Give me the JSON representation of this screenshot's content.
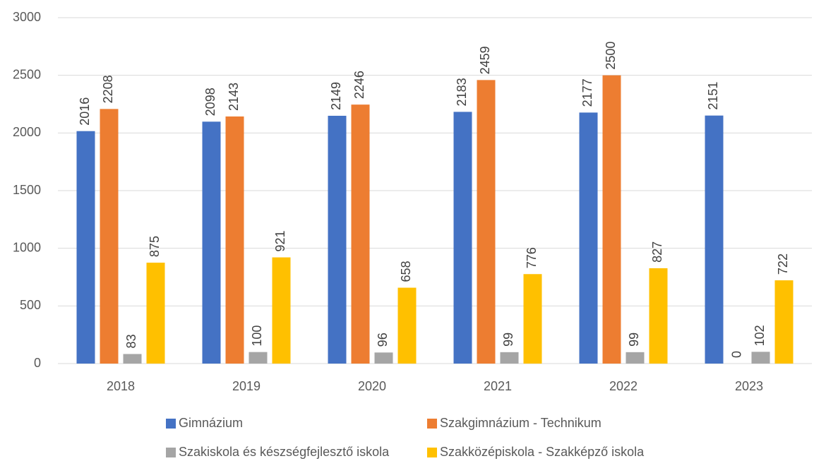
{
  "chart_data": {
    "type": "bar",
    "categories": [
      "2018",
      "2019",
      "2020",
      "2021",
      "2022",
      "2023"
    ],
    "series": [
      {
        "name": "Gimnázium",
        "color": "#4472c4",
        "values": [
          2016,
          2098,
          2149,
          2183,
          2177,
          2151
        ]
      },
      {
        "name": "Szakgimnázium - Technikum",
        "color": "#ed7d31",
        "values": [
          2208,
          2143,
          2246,
          2459,
          2500,
          0
        ]
      },
      {
        "name": "Szakiskola és készségfejlesztő iskola",
        "color": "#a5a5a5",
        "values": [
          83,
          100,
          96,
          99,
          99,
          102
        ]
      },
      {
        "name": "Szakközépiskola - Szakképző iskola",
        "color": "#ffc000",
        "values": [
          875,
          921,
          658,
          776,
          827,
          722
        ]
      }
    ],
    "ylim": [
      0,
      3000
    ],
    "yticks": [
      0,
      500,
      1000,
      1500,
      2000,
      2500,
      3000
    ],
    "grid": true,
    "legend": "bottom"
  }
}
